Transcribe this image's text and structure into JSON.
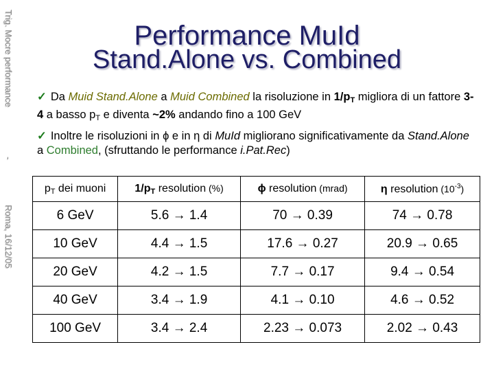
{
  "side": {
    "top": "Trig. Mocre performance",
    "mid": "-",
    "bottom": "Roma, 16/12/05"
  },
  "title": {
    "line1": "Performance MuId",
    "line2": "Stand.Alone vs. Combined"
  },
  "bullets": {
    "check": "ü",
    "b1": {
      "p1": "Da ",
      "muid_sa": "Muid Stand.Alone",
      "p2": " a ",
      "muid_comb": "Muid Combined",
      "p3": "  la risoluzione in ",
      "pt_pre": "1/p",
      "pt_sub": "T",
      "p4": " migliora di un fattore ",
      "factor": "3-4",
      "p5": " a basso p",
      "p5_sub": "T",
      "p6": " e diventa ",
      "pct": "~2%",
      "p7": " andando fino a 100 GeV"
    },
    "b2": {
      "p1": "Inoltre le risoluzioni in ",
      "phi": "ϕ",
      "p2": " e in ",
      "eta": "η",
      "p3": " di ",
      "muid": "MuId",
      "p4": " migliorano significativamente da ",
      "sa": "Stand.Alone",
      "p5": " a ",
      "comb": "Combined",
      "p6": ", (sfruttando le performance ",
      "ipat": "i.Pat.Rec",
      "p7": ")"
    }
  },
  "table": {
    "headers": {
      "c0_pre": "p",
      "c0_sub": "T",
      "c0_post": " dei muoni",
      "c1_pre": "1/p",
      "c1_sub": "T",
      "c1_post": " resolution",
      "c1_unit": " (%)",
      "c2_sym": "ϕ",
      "c2_post": " resolution",
      "c2_unit": " (mrad)",
      "c3_sym": "η",
      "c3_post": "  resolution",
      "c3_unit_pre": " (10",
      "c3_unit_sup": "-3",
      "c3_unit_post": ")"
    },
    "rows": [
      {
        "pt": "6 GeV",
        "pt_res": "5.6 → 1.4",
        "phi_res": "70 → 0.39",
        "eta_res": "74 → 0.78"
      },
      {
        "pt": "10 GeV",
        "pt_res": "4.4 → 1.5",
        "phi_res": "17.6 → 0.27",
        "eta_res": "20.9 → 0.65"
      },
      {
        "pt": "20 GeV",
        "pt_res": "4.2 → 1.5",
        "phi_res": "7.7 → 0.17",
        "eta_res": "9.4 → 0.54"
      },
      {
        "pt": "40 GeV",
        "pt_res": "3.4 → 1.9",
        "phi_res": "4.1 → 0.10",
        "eta_res": "4.6 → 0.52"
      },
      {
        "pt": "100 GeV",
        "pt_res": "3.4 → 2.4",
        "phi_res": "2.23 → 0.073",
        "eta_res": "2.02 → 0.43"
      }
    ]
  }
}
